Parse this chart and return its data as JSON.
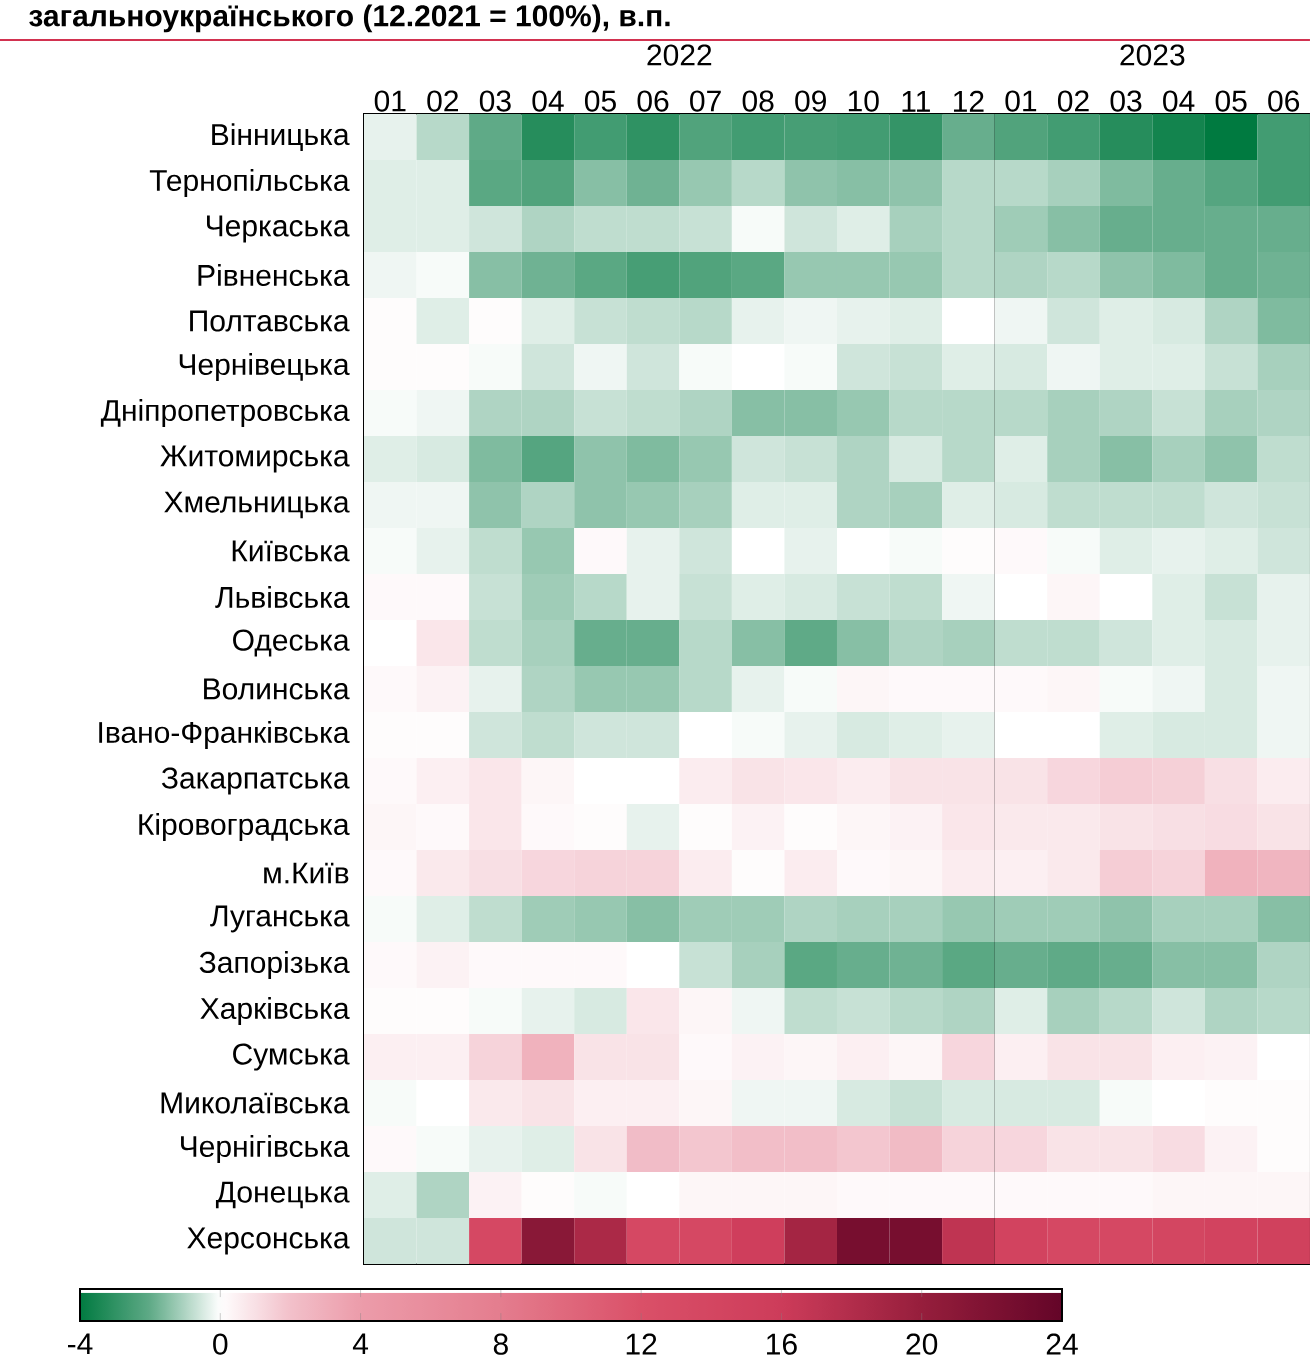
{
  "chart_data": {
    "type": "heatmap",
    "title": "загальноукраїнського (12.2021 = 100%), в.п.",
    "categories": [
      "01",
      "02",
      "03",
      "04",
      "05",
      "06",
      "07",
      "08",
      "09",
      "10",
      "11",
      "12",
      "01",
      "02",
      "03",
      "04",
      "05",
      "06"
    ],
    "annotations": [
      "2022",
      "2023"
    ],
    "y_categories": [
      "Вінницька",
      "Тернопільська",
      "Черкаська",
      "Рівненська",
      "Полтавська",
      "Чернівецька",
      "Дніпропетровська",
      "Житомирська",
      "Хмельницька",
      "Київська",
      "Львівська",
      "Одеська",
      "Волинська",
      "Івано-Франківська",
      "Закарпатська",
      "Кіровоградська",
      "м.Київ",
      "Луганська",
      "Запорізька",
      "Харківська",
      "Сумська",
      "Миколаївська",
      "Чернігівська",
      "Донецька",
      "Херсонська"
    ],
    "cells": [
      [
        -0.3,
        -0.9,
        -2.0,
        -3.2,
        -2.6,
        -3.0,
        -2.3,
        -2.6,
        -2.5,
        -2.6,
        -2.9,
        -1.9,
        -2.3,
        -2.6,
        -3.2,
        -3.6,
        -4.0,
        -2.6
      ],
      [
        -0.4,
        -0.4,
        -2.1,
        -2.3,
        -1.5,
        -1.8,
        -1.3,
        -0.9,
        -1.4,
        -1.5,
        -1.4,
        -0.9,
        -0.9,
        -1.1,
        -1.6,
        -1.9,
        -2.2,
        -2.6
      ],
      [
        -0.4,
        -0.4,
        -0.6,
        -1.0,
        -0.8,
        -0.8,
        -0.7,
        -0.1,
        -0.6,
        -0.4,
        -1.1,
        -0.9,
        -1.2,
        -1.5,
        -1.9,
        -1.9,
        -1.9,
        -1.9
      ],
      [
        -0.2,
        -0.1,
        -1.5,
        -1.8,
        -2.1,
        -2.5,
        -2.3,
        -2.1,
        -1.3,
        -1.3,
        -1.3,
        -0.9,
        -1.0,
        -0.9,
        -1.4,
        -1.6,
        -1.9,
        -1.8
      ],
      [
        0.1,
        -0.4,
        0.1,
        -0.4,
        -0.7,
        -0.8,
        -0.9,
        -0.3,
        -0.2,
        -0.3,
        -0.4,
        0,
        -0.2,
        -0.6,
        -0.4,
        -0.5,
        -1.0,
        -1.6
      ],
      [
        0.1,
        0.1,
        -0.1,
        -0.6,
        -0.2,
        -0.6,
        -0.1,
        0,
        -0.1,
        -0.6,
        -0.7,
        -0.4,
        -0.5,
        -0.2,
        -0.4,
        -0.4,
        -0.7,
        -1.1
      ],
      [
        -0.1,
        -0.2,
        -1.0,
        -1.0,
        -0.7,
        -0.8,
        -1.0,
        -1.5,
        -1.5,
        -1.3,
        -0.9,
        -0.9,
        -0.9,
        -1.1,
        -1.0,
        -0.7,
        -1.1,
        -1.0
      ],
      [
        -0.4,
        -0.5,
        -1.6,
        -2.2,
        -1.4,
        -1.6,
        -1.3,
        -0.6,
        -0.7,
        -1.0,
        -0.5,
        -0.9,
        -0.4,
        -1.1,
        -1.5,
        -1.1,
        -1.4,
        -0.8
      ],
      [
        -0.2,
        -0.2,
        -1.4,
        -1.0,
        -1.4,
        -1.3,
        -1.1,
        -0.4,
        -0.4,
        -1.0,
        -1.1,
        -0.4,
        -0.5,
        -0.8,
        -0.8,
        -0.8,
        -0.6,
        -0.7
      ],
      [
        -0.1,
        -0.3,
        -0.8,
        -1.3,
        0.2,
        -0.3,
        -0.6,
        0,
        -0.3,
        0,
        -0.1,
        0.1,
        0.2,
        -0.1,
        -0.4,
        -0.3,
        -0.4,
        -0.6
      ],
      [
        0.2,
        0.2,
        -0.7,
        -1.2,
        -0.9,
        -0.3,
        -0.7,
        -0.4,
        -0.5,
        -0.7,
        -0.8,
        -0.2,
        0,
        0.3,
        0,
        -0.4,
        -0.7,
        -0.3
      ],
      [
        0,
        0.8,
        -0.8,
        -1.1,
        -1.9,
        -1.9,
        -0.9,
        -1.5,
        -2.0,
        -1.5,
        -1.0,
        -1.1,
        -0.8,
        -0.8,
        -0.6,
        -0.4,
        -0.5,
        -0.3
      ],
      [
        0.2,
        0.4,
        -0.3,
        -1.0,
        -1.3,
        -1.3,
        -0.9,
        -0.3,
        -0.1,
        0.3,
        0.2,
        0.2,
        0.2,
        0.3,
        -0.1,
        -0.2,
        -0.5,
        -0.2
      ],
      [
        0.1,
        0.1,
        -0.6,
        -0.8,
        -0.6,
        -0.6,
        0,
        -0.1,
        -0.3,
        -0.5,
        -0.4,
        -0.3,
        0,
        0,
        -0.4,
        -0.5,
        -0.5,
        -0.2
      ],
      [
        0.2,
        0.5,
        0.8,
        0.3,
        0,
        0,
        0.6,
        0.9,
        0.8,
        0.6,
        0.9,
        0.9,
        0.9,
        1.3,
        1.6,
        1.5,
        1.0,
        0.6
      ],
      [
        0.3,
        0.2,
        0.8,
        0.2,
        0.1,
        -0.3,
        0.1,
        0.4,
        0.1,
        0.3,
        0.4,
        0.8,
        0.7,
        0.7,
        0.9,
        1.0,
        1.1,
        0.9
      ],
      [
        0.2,
        0.7,
        1.0,
        1.3,
        1.4,
        1.4,
        0.6,
        0.1,
        0.6,
        0.2,
        0.3,
        0.6,
        0.5,
        0.7,
        1.6,
        1.4,
        2.8,
        2.6
      ],
      [
        -0.1,
        -0.4,
        -0.8,
        -1.2,
        -1.3,
        -1.5,
        -1.2,
        -1.2,
        -1.0,
        -1.1,
        -1.1,
        -1.3,
        -1.2,
        -1.2,
        -1.4,
        -1.1,
        -1.1,
        -1.5
      ],
      [
        0.2,
        0.4,
        0.2,
        0.2,
        0.2,
        0,
        -0.7,
        -1.1,
        -2.1,
        -1.9,
        -1.8,
        -2.1,
        -1.9,
        -2.0,
        -1.9,
        -1.5,
        -1.5,
        -1.0
      ],
      [
        0.1,
        0.1,
        -0.1,
        -0.3,
        -0.5,
        0.8,
        0.3,
        -0.2,
        -0.8,
        -0.7,
        -0.9,
        -1.0,
        -0.4,
        -1.1,
        -0.9,
        -0.6,
        -1.0,
        -0.9
      ],
      [
        0.5,
        0.5,
        1.4,
        2.8,
        0.9,
        0.9,
        0.2,
        0.4,
        0.3,
        0.5,
        0.3,
        1.3,
        0.5,
        0.9,
        0.9,
        0.5,
        0.4,
        0
      ],
      [
        -0.1,
        0,
        0.7,
        0.9,
        0.5,
        0.5,
        0.3,
        -0.2,
        -0.2,
        -0.5,
        -0.7,
        -0.5,
        -0.5,
        -0.5,
        -0.1,
        0,
        0.1,
        0.1
      ],
      [
        0.2,
        -0.1,
        -0.3,
        -0.4,
        0.9,
        2.2,
        1.8,
        2.1,
        2.1,
        1.8,
        2.3,
        1.4,
        1.3,
        0.9,
        0.9,
        1.1,
        0.4,
        0.1
      ],
      [
        -0.4,
        -1.0,
        0.4,
        0.1,
        -0.1,
        0,
        0.3,
        0.3,
        0.3,
        0.2,
        0.2,
        0.2,
        0.2,
        0.2,
        0.2,
        0.3,
        0.3,
        0.3
      ],
      [
        -0.6,
        -0.6,
        13.5,
        21.0,
        18.5,
        13.5,
        13.5,
        15.5,
        19.0,
        22.5,
        22.5,
        17.0,
        14.5,
        13.5,
        13.5,
        14.0,
        14.5,
        15.0
      ]
    ],
    "clim": [
      -4,
      24
    ],
    "cticks": [
      -4,
      0,
      4,
      8,
      12,
      16,
      20,
      24
    ]
  }
}
